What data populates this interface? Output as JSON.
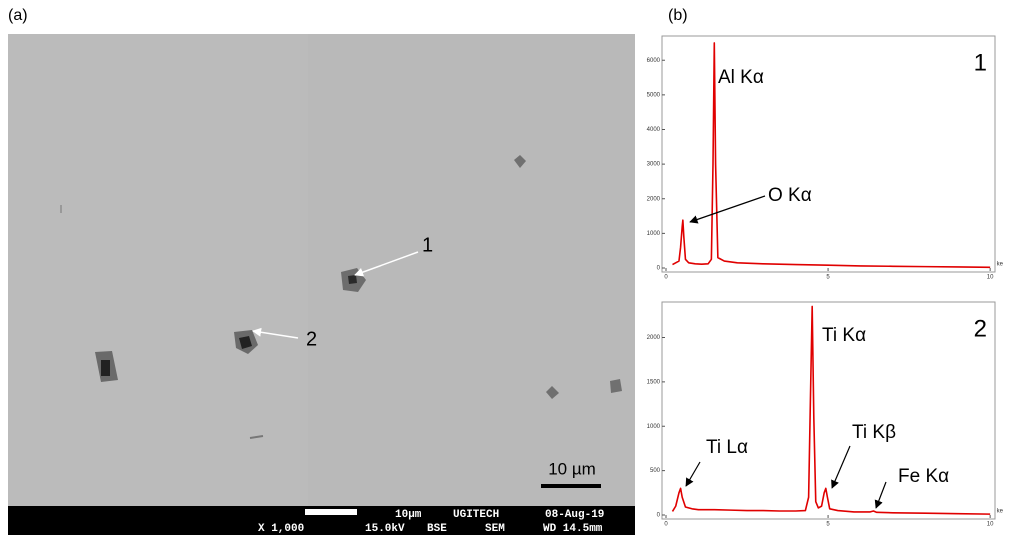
{
  "figure": {
    "panel_a": "(a)",
    "panel_b": "(b)",
    "sem": {
      "markers": [
        "1",
        "2"
      ],
      "scale_label": "10 µm",
      "info_top": [
        "10µm",
        "UGITECH",
        "08-Aug-19"
      ],
      "info_bottom": [
        "X 1,000",
        "15.0kV",
        "BSE",
        "SEM",
        "WD 14.5mm"
      ]
    }
  },
  "chart_data": [
    {
      "type": "line",
      "label": "1",
      "color": "#e00000",
      "xlabel": "ke",
      "x": [
        0.2,
        0.3,
        0.4,
        0.45,
        0.5,
        0.52,
        0.55,
        0.6,
        0.7,
        0.9,
        1.1,
        1.3,
        1.4,
        1.45,
        1.49,
        1.53,
        1.6,
        1.8,
        2.2,
        3,
        4,
        5,
        6,
        7,
        8,
        9,
        10
      ],
      "values": [
        100,
        150,
        200,
        600,
        1200,
        1380,
        900,
        250,
        150,
        120,
        110,
        120,
        250,
        3000,
        6500,
        3000,
        300,
        200,
        150,
        120,
        100,
        80,
        60,
        50,
        40,
        30,
        20
      ],
      "xlim": [
        0,
        10.15
      ],
      "xticks": [
        0,
        5,
        10
      ],
      "ylim": [
        0,
        6700
      ],
      "yticks": [
        0,
        1000,
        2000,
        3000,
        4000,
        5000,
        6000
      ],
      "annotations": [
        "Al Kα",
        "O Kα"
      ]
    },
    {
      "type": "line",
      "label": "2",
      "color": "#e00000",
      "xlabel": "ke",
      "x": [
        0.2,
        0.3,
        0.4,
        0.45,
        0.5,
        0.6,
        0.8,
        1,
        1.5,
        2,
        2.5,
        3,
        3.5,
        4,
        4.3,
        4.4,
        4.45,
        4.51,
        4.56,
        4.62,
        4.7,
        4.8,
        4.88,
        4.93,
        4.98,
        5.05,
        5.3,
        5.8,
        6.3,
        6.4,
        6.5,
        7,
        8,
        9,
        10
      ],
      "values": [
        40,
        100,
        250,
        300,
        200,
        90,
        70,
        60,
        60,
        55,
        50,
        50,
        45,
        45,
        50,
        200,
        1200,
        2350,
        1100,
        150,
        80,
        100,
        250,
        300,
        200,
        70,
        50,
        35,
        35,
        45,
        30,
        25,
        20,
        15,
        10
      ],
      "xlim": [
        0,
        10.15
      ],
      "xticks": [
        0,
        5,
        10
      ],
      "ylim": [
        0,
        2400
      ],
      "yticks": [
        0,
        500,
        1000,
        1500,
        2000
      ],
      "annotations": [
        "Ti Kα",
        "Ti Lα",
        "Ti Kβ",
        "Fe Kα"
      ]
    }
  ]
}
